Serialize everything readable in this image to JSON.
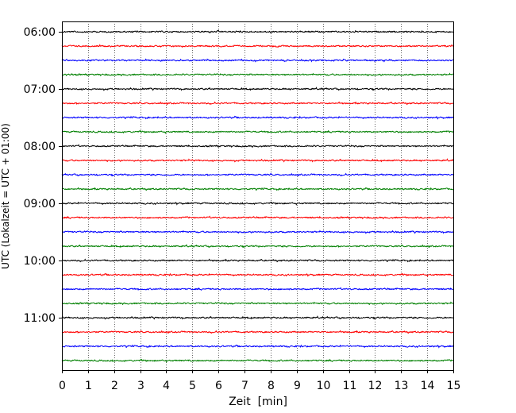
{
  "chart_data": {
    "type": "line",
    "title": "",
    "xlabel": "Zeit  [min]",
    "ylabel": "UTC (Lokalzeit = UTC + 01:00)",
    "xlim": [
      0,
      15
    ],
    "x_ticks": [
      0,
      1,
      2,
      3,
      4,
      5,
      6,
      7,
      8,
      9,
      10,
      11,
      12,
      13,
      14,
      15
    ],
    "x_tick_labels": [
      "0",
      "1",
      "2",
      "3",
      "4",
      "5",
      "6",
      "7",
      "8",
      "9",
      "10",
      "11",
      "12",
      "13",
      "14",
      "15"
    ],
    "y_tick_labels": [
      "06:00",
      "07:00",
      "08:00",
      "09:00",
      "10:00",
      "11:00"
    ],
    "grid": {
      "x": true,
      "y": false,
      "style": "dotted"
    },
    "trace_interval_minutes": 15,
    "trace_colors": [
      "#000000",
      "#ff0000",
      "#0000ff",
      "#008000"
    ],
    "traces": [
      {
        "start": "06:00",
        "color": "#000000"
      },
      {
        "start": "06:15",
        "color": "#ff0000"
      },
      {
        "start": "06:30",
        "color": "#0000ff"
      },
      {
        "start": "06:45",
        "color": "#008000"
      },
      {
        "start": "07:00",
        "color": "#000000"
      },
      {
        "start": "07:15",
        "color": "#ff0000"
      },
      {
        "start": "07:30",
        "color": "#0000ff"
      },
      {
        "start": "07:45",
        "color": "#008000"
      },
      {
        "start": "08:00",
        "color": "#000000"
      },
      {
        "start": "08:15",
        "color": "#ff0000"
      },
      {
        "start": "08:30",
        "color": "#0000ff"
      },
      {
        "start": "08:45",
        "color": "#008000"
      },
      {
        "start": "09:00",
        "color": "#000000"
      },
      {
        "start": "09:15",
        "color": "#ff0000"
      },
      {
        "start": "09:30",
        "color": "#0000ff"
      },
      {
        "start": "09:45",
        "color": "#008000"
      },
      {
        "start": "10:00",
        "color": "#000000"
      },
      {
        "start": "10:15",
        "color": "#ff0000"
      },
      {
        "start": "10:30",
        "color": "#0000ff"
      },
      {
        "start": "10:45",
        "color": "#008000"
      },
      {
        "start": "11:00",
        "color": "#000000"
      },
      {
        "start": "11:15",
        "color": "#ff0000"
      },
      {
        "start": "11:30",
        "color": "#0000ff"
      },
      {
        "start": "11:45",
        "color": "#008000"
      }
    ]
  }
}
